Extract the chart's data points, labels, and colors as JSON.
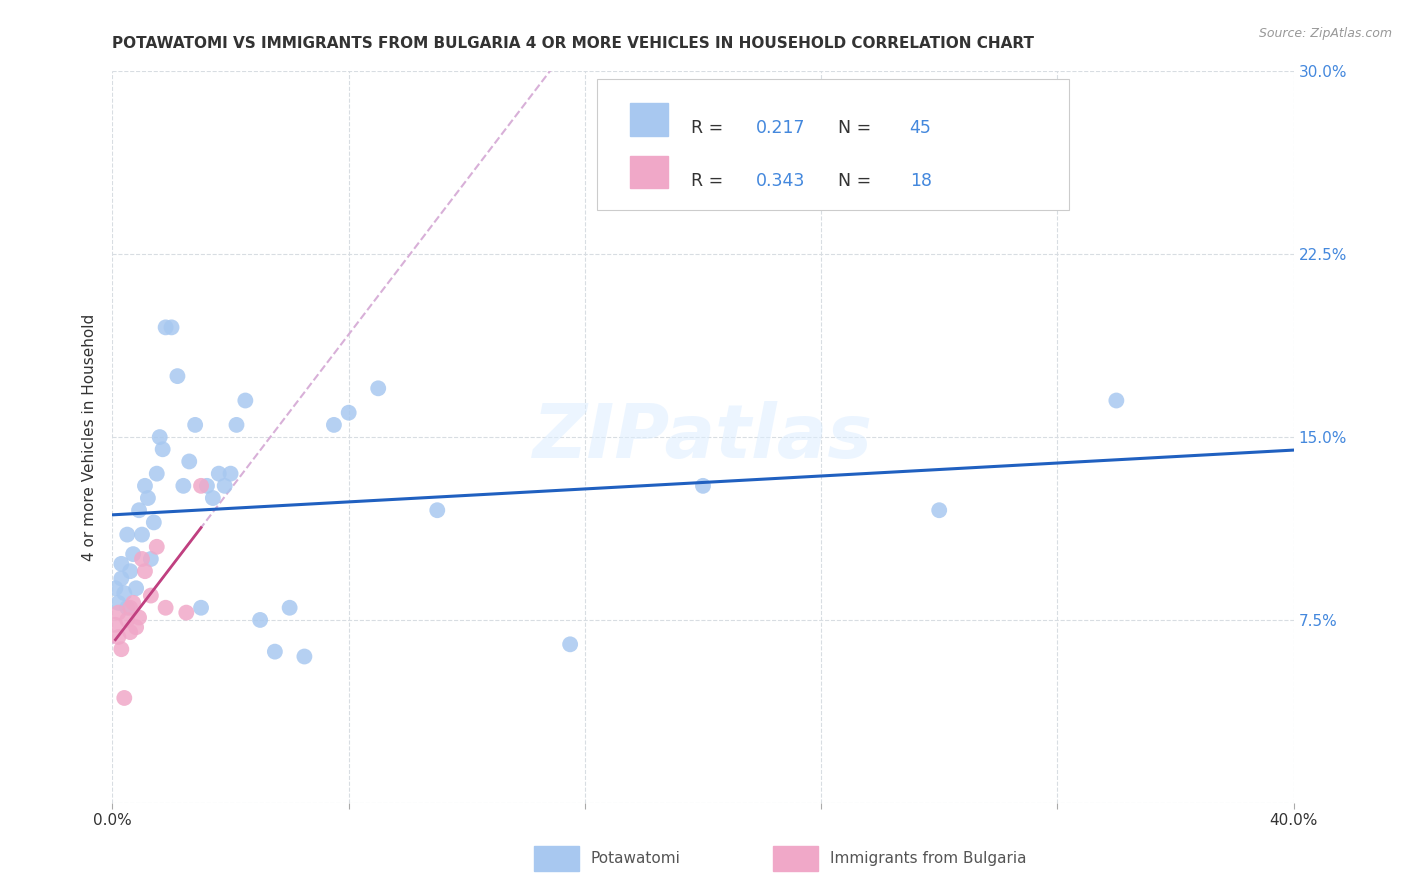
{
  "title": "POTAWATOMI VS IMMIGRANTS FROM BULGARIA 4 OR MORE VEHICLES IN HOUSEHOLD CORRELATION CHART",
  "source": "Source: ZipAtlas.com",
  "ylabel": "4 or more Vehicles in Household",
  "xlim": [
    0.0,
    0.4
  ],
  "ylim": [
    0.0,
    0.3
  ],
  "potawatomi_color": "#a8c8f0",
  "potawatomi_line_color": "#2060c0",
  "bulgaria_color": "#f0a8c8",
  "bulgaria_line_color": "#c04080",
  "dashed_line_color": "#d8b0d8",
  "watermark": "ZIPatlas",
  "grid_color": "#d8dde2",
  "background_color": "#ffffff",
  "title_fontsize": 11,
  "axis_label_fontsize": 11,
  "tick_fontsize": 11,
  "legend_R_text": "R = ",
  "legend_N_text": "N = ",
  "pot_R": "0.217",
  "pot_N": "45",
  "bul_R": "0.343",
  "bul_N": "18",
  "text_color_blue": "#4488dd",
  "text_color_dark": "#333333",
  "source_color": "#999999",
  "right_tick_color": "#4488dd",
  "potawatomi_x": [
    0.001,
    0.002,
    0.003,
    0.003,
    0.004,
    0.005,
    0.005,
    0.006,
    0.007,
    0.008,
    0.009,
    0.01,
    0.011,
    0.012,
    0.013,
    0.014,
    0.015,
    0.016,
    0.017,
    0.018,
    0.02,
    0.022,
    0.024,
    0.026,
    0.028,
    0.03,
    0.032,
    0.034,
    0.036,
    0.038,
    0.04,
    0.042,
    0.045,
    0.05,
    0.055,
    0.06,
    0.065,
    0.075,
    0.08,
    0.09,
    0.11,
    0.155,
    0.2,
    0.28,
    0.34
  ],
  "potawatomi_y": [
    0.088,
    0.082,
    0.092,
    0.098,
    0.086,
    0.08,
    0.11,
    0.095,
    0.102,
    0.088,
    0.12,
    0.11,
    0.13,
    0.125,
    0.1,
    0.115,
    0.135,
    0.15,
    0.145,
    0.195,
    0.195,
    0.175,
    0.13,
    0.14,
    0.155,
    0.08,
    0.13,
    0.125,
    0.135,
    0.13,
    0.135,
    0.155,
    0.165,
    0.075,
    0.062,
    0.08,
    0.06,
    0.155,
    0.16,
    0.17,
    0.12,
    0.065,
    0.13,
    0.12,
    0.165
  ],
  "bulgaria_x": [
    0.001,
    0.002,
    0.002,
    0.003,
    0.004,
    0.005,
    0.006,
    0.006,
    0.007,
    0.008,
    0.009,
    0.01,
    0.011,
    0.013,
    0.015,
    0.018,
    0.025,
    0.03
  ],
  "bulgaria_y": [
    0.073,
    0.068,
    0.078,
    0.063,
    0.043,
    0.075,
    0.07,
    0.08,
    0.082,
    0.072,
    0.076,
    0.1,
    0.095,
    0.085,
    0.105,
    0.08,
    0.078,
    0.13
  ]
}
